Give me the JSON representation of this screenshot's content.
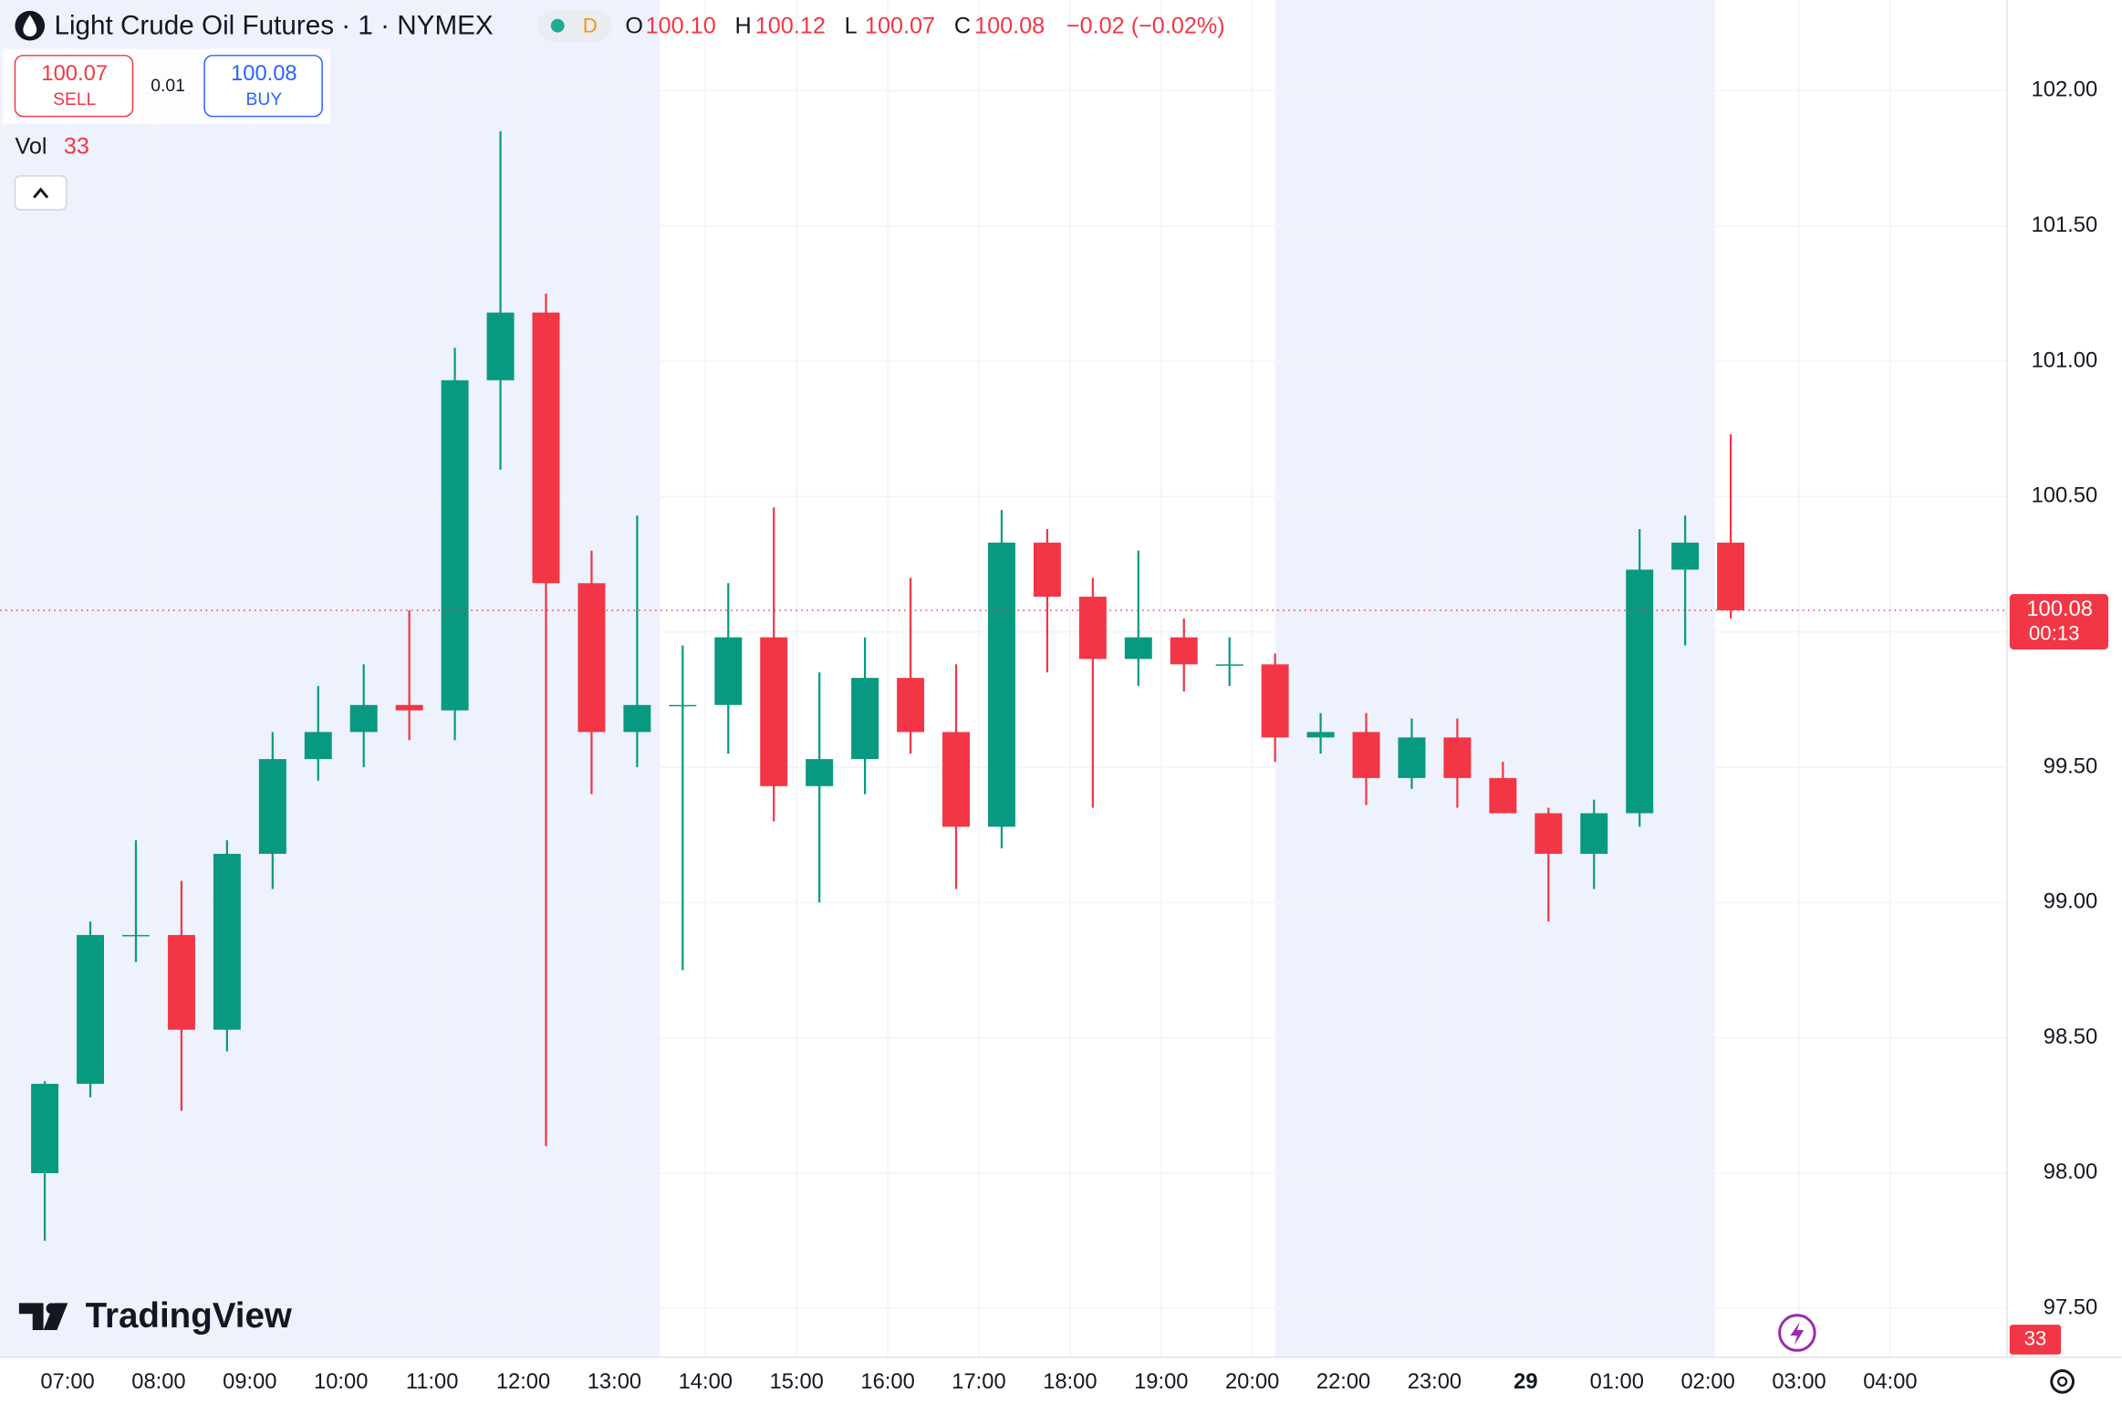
{
  "header": {
    "title": "Light Crude Oil Futures · 1 · NYMEX",
    "interval_badge": "D",
    "ohlc": [
      {
        "key": "O",
        "value": "100.10"
      },
      {
        "key": "H",
        "value": "100.12"
      },
      {
        "key": "L",
        "value": "100.07"
      },
      {
        "key": "C",
        "value": "100.08"
      }
    ],
    "change": "−0.02 (−0.02%)"
  },
  "trade": {
    "sell_price": "100.07",
    "sell_label": "SELL",
    "spread": "0.01",
    "buy_price": "100.08",
    "buy_label": "BUY"
  },
  "volume_legend": {
    "label": "Vol",
    "value": "33"
  },
  "logo": "TradingView",
  "chart_data": {
    "type": "candlestick",
    "x": [
      6.5,
      7,
      7.5,
      8,
      8.5,
      9,
      9.5,
      10,
      10.5,
      11,
      11.5,
      12,
      12.5,
      13,
      13.5,
      14,
      14.5,
      15,
      15.5,
      16,
      16.5,
      17,
      17.5,
      18,
      18.5,
      19,
      19.5,
      20,
      20.5,
      22,
      22.5,
      23,
      23.5,
      24,
      24.5,
      25,
      25.5,
      26
    ],
    "open": [
      98.0,
      98.33,
      98.88,
      98.88,
      98.53,
      99.18,
      99.53,
      99.63,
      99.73,
      99.71,
      100.93,
      101.18,
      100.18,
      99.63,
      99.73,
      99.73,
      99.98,
      99.43,
      99.53,
      99.83,
      99.63,
      99.28,
      100.33,
      100.13,
      99.9,
      99.98,
      99.88,
      99.88,
      99.61,
      99.63,
      99.46,
      99.61,
      99.46,
      99.33,
      99.18,
      99.33,
      100.23,
      100.33
    ],
    "high": [
      98.34,
      98.93,
      99.23,
      99.08,
      99.23,
      99.63,
      99.8,
      99.88,
      100.08,
      101.05,
      101.85,
      101.25,
      100.3,
      100.43,
      99.95,
      100.18,
      100.46,
      99.85,
      99.98,
      100.2,
      99.88,
      100.45,
      100.38,
      100.2,
      100.3,
      100.05,
      99.98,
      99.92,
      99.7,
      99.7,
      99.68,
      99.68,
      99.52,
      99.35,
      99.38,
      100.38,
      100.43,
      100.73
    ],
    "low": [
      97.75,
      98.28,
      98.78,
      98.23,
      98.45,
      99.05,
      99.45,
      99.5,
      99.6,
      99.6,
      100.6,
      98.1,
      99.4,
      99.5,
      98.75,
      99.55,
      99.3,
      99.0,
      99.4,
      99.55,
      99.05,
      99.2,
      99.85,
      99.35,
      99.8,
      99.78,
      99.8,
      99.52,
      99.55,
      99.36,
      99.42,
      99.35,
      99.36,
      98.93,
      99.05,
      99.28,
      99.95,
      100.05
    ],
    "close": [
      98.33,
      98.88,
      98.88,
      98.53,
      99.18,
      99.53,
      99.63,
      99.73,
      99.71,
      100.93,
      101.18,
      100.18,
      99.63,
      99.73,
      99.73,
      99.98,
      99.43,
      99.53,
      99.83,
      99.63,
      99.28,
      100.33,
      100.13,
      99.9,
      99.98,
      99.88,
      99.88,
      99.61,
      99.63,
      99.46,
      99.61,
      99.46,
      99.33,
      99.18,
      99.33,
      100.23,
      100.33,
      100.08
    ],
    "up_color": "#089981",
    "down_color": "#f23645",
    "xlim": [
      6.26,
      29.28
    ],
    "x_gap": [
      21,
      22
    ],
    "xticks": [
      {
        "value": 7,
        "label": "07:00"
      },
      {
        "value": 8,
        "label": "08:00"
      },
      {
        "value": 9,
        "label": "09:00"
      },
      {
        "value": 10,
        "label": "10:00"
      },
      {
        "value": 11,
        "label": "11:00"
      },
      {
        "value": 12,
        "label": "12:00"
      },
      {
        "value": 13,
        "label": "13:00"
      },
      {
        "value": 14,
        "label": "14:00"
      },
      {
        "value": 15,
        "label": "15:00"
      },
      {
        "value": 16,
        "label": "16:00"
      },
      {
        "value": 17,
        "label": "17:00"
      },
      {
        "value": 18,
        "label": "18:00"
      },
      {
        "value": 19,
        "label": "19:00"
      },
      {
        "value": 20,
        "label": "20:00"
      },
      {
        "value": 22,
        "label": "22:00"
      },
      {
        "value": 23,
        "label": "23:00"
      },
      {
        "value": 24,
        "label": "29"
      },
      {
        "value": 25,
        "label": "01:00"
      },
      {
        "value": 26,
        "label": "02:00"
      },
      {
        "value": 27,
        "label": "03:00"
      },
      {
        "value": 28,
        "label": "04:00"
      }
    ],
    "ylim": [
      97.32,
      102.335
    ],
    "yticks": [
      {
        "value": 97.5,
        "label": "97.50"
      },
      {
        "value": 98,
        "label": "98.00"
      },
      {
        "value": 98.5,
        "label": "98.50"
      },
      {
        "value": 99,
        "label": "99.00"
      },
      {
        "value": 99.5,
        "label": "99.50"
      },
      {
        "value": 100,
        "label": "100.00"
      },
      {
        "value": 100.5,
        "label": "100.50"
      },
      {
        "value": 101,
        "label": "101.00"
      },
      {
        "value": 101.5,
        "label": "101.50"
      },
      {
        "value": 102,
        "label": "102.00"
      }
    ],
    "grid": true,
    "shaded_ranges": [
      [
        6.26,
        13.5
      ],
      [
        20.25,
        26.08
      ]
    ],
    "shade_color": "#eef2fd",
    "last_price": {
      "value": 100.08,
      "label": "100.08"
    },
    "countdown": "00:13",
    "volume_badge": "33"
  }
}
